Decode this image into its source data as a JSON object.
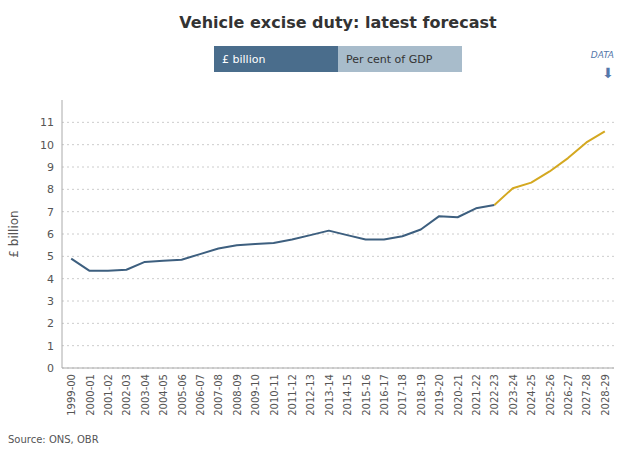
{
  "chart_data": {
    "type": "line",
    "title": "Vehicle excise duty: latest forecast",
    "y_label": "£ billion",
    "annotations": [
      {
        "text": "Source: ONS, OBR"
      },
      {
        "text": "£ billion",
        "color": "#4a6d8c"
      },
      {
        "text": "Per cent of GDP",
        "color": "#a8bccb"
      },
      {
        "text": "DATA"
      },
      {
        "text": "⬇"
      }
    ],
    "categories": [
      "1999-00",
      "2000-01",
      "2001-02",
      "2002-03",
      "2003-04",
      "2004-05",
      "2005-06",
      "2006-07",
      "2007-08",
      "2008-09",
      "2009-10",
      "2010-11",
      "2011-12",
      "2012-13",
      "2013-14",
      "2014-15",
      "2015-16",
      "2016-17",
      "2017-18",
      "2018-19",
      "2019-20",
      "2020-21",
      "2021-22",
      "2022-23",
      "2023-24",
      "2024-25",
      "2025-26",
      "2026-27",
      "2027-28",
      "2028-29"
    ],
    "series": [
      {
        "color": "#3d5f7f",
        "values": [
          4.9,
          4.35,
          4.35,
          4.4,
          4.75,
          4.8,
          4.85,
          5.1,
          5.35,
          5.5,
          5.55,
          5.6,
          5.75,
          5.95,
          6.15,
          5.95,
          5.75,
          5.75,
          5.9,
          6.2,
          6.8,
          6.75,
          7.15,
          7.3,
          null,
          null,
          null,
          null,
          null,
          null
        ]
      },
      {
        "color": "#d4a820",
        "values": [
          null,
          null,
          null,
          null,
          null,
          null,
          null,
          null,
          null,
          null,
          null,
          null,
          null,
          null,
          null,
          null,
          null,
          null,
          null,
          null,
          null,
          null,
          null,
          7.3,
          8.05,
          8.3,
          8.8,
          9.4,
          10.1,
          10.6
        ]
      }
    ],
    "ylim": [
      0,
      12
    ],
    "yticks": [
      0,
      1,
      2,
      3,
      4,
      5,
      6,
      7,
      8,
      9,
      10,
      11
    ],
    "grid": true
  }
}
